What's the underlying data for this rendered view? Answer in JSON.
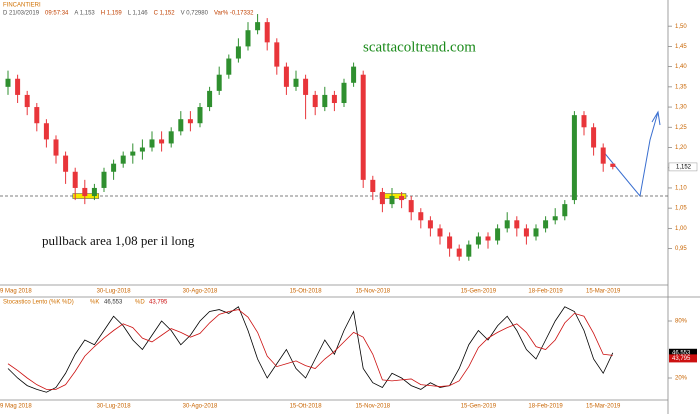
{
  "chart_data": [
    {
      "type": "candlestick",
      "title": "FINCANTIERI",
      "info": [
        "D 21/03/2019",
        "09:57:34",
        "A 1,153",
        "H 1,159",
        "L 1,146",
        "C 1,152",
        "V 0,72980",
        "Var% -0,17332"
      ],
      "watermark": "scattacoltrend.com",
      "annotation": "pullback area 1,08 per il long",
      "categories": [
        "9 Mag 2018",
        null,
        null,
        null,
        null,
        null,
        null,
        null,
        null,
        null,
        null,
        "30-Lug-2018",
        null,
        null,
        null,
        null,
        null,
        null,
        null,
        null,
        "30-Ago-2018",
        null,
        null,
        null,
        null,
        null,
        null,
        null,
        null,
        null,
        null,
        "15-Ott-2018",
        null,
        null,
        null,
        null,
        null,
        null,
        "15-Nov-2018",
        null,
        null,
        null,
        null,
        null,
        null,
        null,
        null,
        null,
        null,
        "15-Gen-2019",
        null,
        null,
        null,
        null,
        null,
        null,
        "18-Feb-2019",
        null,
        null,
        null,
        null,
        null,
        "15-Mar-2019",
        null
      ],
      "open": [
        1.35,
        1.37,
        1.33,
        1.3,
        1.26,
        1.22,
        1.18,
        1.14,
        1.1,
        1.08,
        1.1,
        1.14,
        1.16,
        1.18,
        1.19,
        1.2,
        1.22,
        1.21,
        1.24,
        1.27,
        1.26,
        1.3,
        1.34,
        1.38,
        1.42,
        1.45,
        1.49,
        1.51,
        1.46,
        1.4,
        1.35,
        1.37,
        1.33,
        1.3,
        1.33,
        1.31,
        1.36,
        1.38,
        1.12,
        1.09,
        1.06,
        1.08,
        1.07,
        1.04,
        1.02,
        1.0,
        0.98,
        0.95,
        0.93,
        0.96,
        0.98,
        0.97,
        1.0,
        1.02,
        1.0,
        0.98,
        1.0,
        1.02,
        1.03,
        1.07,
        1.28,
        1.25,
        1.2,
        1.16
      ],
      "high": [
        1.39,
        1.38,
        1.34,
        1.31,
        1.27,
        1.23,
        1.19,
        1.15,
        1.12,
        1.11,
        1.15,
        1.17,
        1.19,
        1.21,
        1.22,
        1.24,
        1.24,
        1.25,
        1.29,
        1.29,
        1.31,
        1.35,
        1.4,
        1.43,
        1.47,
        1.51,
        1.53,
        1.52,
        1.47,
        1.41,
        1.39,
        1.38,
        1.34,
        1.35,
        1.34,
        1.37,
        1.41,
        1.39,
        1.13,
        1.1,
        1.1,
        1.09,
        1.08,
        1.05,
        1.03,
        1.01,
        0.99,
        0.96,
        0.97,
        0.99,
        0.99,
        1.01,
        1.04,
        1.03,
        1.01,
        1.01,
        1.03,
        1.05,
        1.07,
        1.29,
        1.29,
        1.26,
        1.21,
        1.159
      ],
      "low": [
        1.33,
        1.31,
        1.28,
        1.24,
        1.2,
        1.16,
        1.11,
        1.07,
        1.06,
        1.07,
        1.09,
        1.12,
        1.15,
        1.16,
        1.17,
        1.19,
        1.19,
        1.2,
        1.23,
        1.24,
        1.25,
        1.29,
        1.33,
        1.37,
        1.41,
        1.44,
        1.48,
        1.44,
        1.38,
        1.33,
        1.34,
        1.27,
        1.28,
        1.29,
        1.29,
        1.3,
        1.35,
        1.1,
        1.07,
        1.04,
        1.05,
        1.05,
        1.02,
        1.0,
        0.98,
        0.96,
        0.93,
        0.92,
        0.92,
        0.95,
        0.95,
        0.96,
        0.99,
        0.98,
        0.96,
        0.97,
        0.99,
        1.01,
        1.02,
        1.06,
        1.23,
        1.18,
        1.14,
        1.146
      ],
      "close": [
        1.37,
        1.33,
        1.3,
        1.26,
        1.22,
        1.18,
        1.14,
        1.1,
        1.08,
        1.1,
        1.14,
        1.16,
        1.18,
        1.19,
        1.2,
        1.22,
        1.21,
        1.24,
        1.27,
        1.26,
        1.3,
        1.34,
        1.38,
        1.42,
        1.45,
        1.49,
        1.51,
        1.46,
        1.4,
        1.35,
        1.37,
        1.33,
        1.3,
        1.33,
        1.31,
        1.36,
        1.4,
        1.12,
        1.09,
        1.06,
        1.08,
        1.07,
        1.04,
        1.02,
        1.0,
        0.98,
        0.95,
        0.93,
        0.96,
        0.98,
        0.97,
        1.0,
        1.02,
        1.0,
        0.98,
        1.0,
        1.02,
        1.03,
        1.06,
        1.28,
        1.25,
        1.2,
        1.16,
        1.152
      ],
      "last_label": "1,152",
      "up_color": "#2f8f2f",
      "down_color": "#e8353a",
      "level": 1.08,
      "ylim": [
        0.86,
        1.54
      ],
      "yticks": [
        {
          "value": 0.95,
          "label": "0,95"
        },
        {
          "value": 1,
          "label": "1,00"
        },
        {
          "value": 1.05,
          "label": "1,05"
        },
        {
          "value": 1.1,
          "label": "1,10"
        },
        {
          "value": 1.15,
          "label": "1,15"
        },
        {
          "value": 1.2,
          "label": "1,20"
        },
        {
          "value": 1.25,
          "label": "1,25"
        },
        {
          "value": 1.3,
          "label": "1,30"
        },
        {
          "value": 1.35,
          "label": "1,35"
        },
        {
          "value": 1.4,
          "label": "1,40"
        },
        {
          "value": 1.45,
          "label": "1,45"
        },
        {
          "value": 1.5,
          "label": "1,50"
        }
      ]
    },
    {
      "type": "line",
      "title": "Stocastico Lento (%K %D)",
      "series": [
        {
          "name": "%K",
          "color": "#000000",
          "readout": "46,553",
          "values": [
            30,
            20,
            12,
            8,
            5,
            10,
            25,
            45,
            60,
            55,
            70,
            85,
            75,
            60,
            50,
            65,
            80,
            70,
            55,
            65,
            80,
            90,
            92,
            88,
            95,
            70,
            40,
            20,
            35,
            50,
            30,
            20,
            40,
            60,
            45,
            70,
            90,
            30,
            15,
            10,
            25,
            20,
            12,
            8,
            15,
            10,
            12,
            30,
            55,
            70,
            60,
            75,
            85,
            70,
            50,
            40,
            60,
            80,
            95,
            90,
            70,
            40,
            25,
            46.553
          ]
        },
        {
          "name": "%D",
          "color": "#cc1111",
          "readout": "43,795",
          "values": [
            35,
            28,
            20,
            13,
            8,
            8,
            13,
            27,
            43,
            53,
            62,
            70,
            77,
            73,
            62,
            58,
            65,
            72,
            68,
            63,
            67,
            78,
            87,
            90,
            92,
            84,
            68,
            43,
            32,
            35,
            38,
            33,
            30,
            40,
            48,
            58,
            68,
            63,
            45,
            18,
            17,
            18,
            19,
            13,
            12,
            11,
            12,
            17,
            32,
            52,
            62,
            68,
            73,
            77,
            68,
            53,
            50,
            60,
            78,
            88,
            85,
            67,
            45,
            43.795
          ]
        }
      ],
      "ylim": [
        0,
        100
      ],
      "yticks": [
        {
          "value": 20,
          "label": "20%"
        },
        {
          "value": 80,
          "label": "80%"
        }
      ]
    }
  ]
}
